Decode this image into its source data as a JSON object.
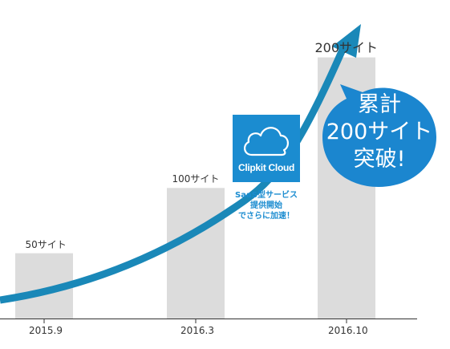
{
  "chart_data": {
    "type": "bar",
    "categories": [
      "2015.9",
      "2016.3",
      "2016.10"
    ],
    "values": [
      50,
      100,
      200
    ],
    "value_labels": [
      "50サイト",
      "100サイト",
      "200サイト"
    ],
    "title": "",
    "xlabel": "",
    "ylabel": "",
    "ylim": [
      0,
      220
    ],
    "grid": false,
    "legend": "none",
    "trend_arrow": true
  },
  "callout": {
    "product_name": "Clipkit Cloud",
    "note_lines": [
      "SaaS型サービス",
      "提供開始",
      "でさらに加速！"
    ]
  },
  "bubble": {
    "lines": [
      "累計",
      "200サイト",
      "突破!"
    ]
  },
  "colors": {
    "bar": "#dcdcdc",
    "arrow": "#1a88b8",
    "product_box": "#1b8cd0",
    "bubble": "#1b86cf",
    "axis": "#333333"
  },
  "icons": {
    "product": "cloud-icon"
  }
}
